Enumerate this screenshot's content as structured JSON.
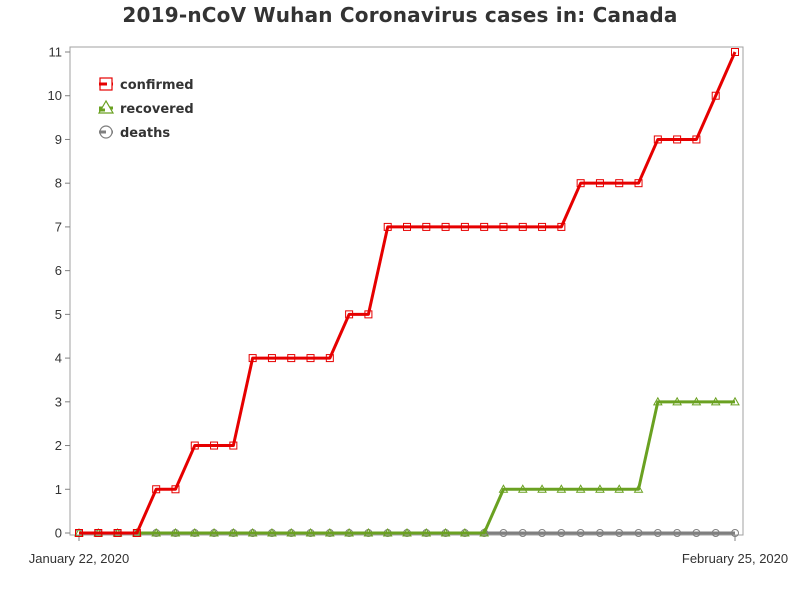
{
  "chart_data": {
    "type": "line",
    "title": "2019-nCoV Wuhan Coronavirus cases in: Canada",
    "x_label_first": "January 22, 2020",
    "x_label_last": "February 25, 2020",
    "xlabel": "",
    "ylabel": "",
    "x_start": "2020-01-22",
    "x_end": "2020-02-25",
    "ylim": [
      0,
      11
    ],
    "yticks": [
      "0",
      "1",
      "2",
      "3",
      "4",
      "5",
      "6",
      "7",
      "8",
      "9",
      "10",
      "11"
    ],
    "x": [
      "2020-01-22",
      "2020-01-23",
      "2020-01-24",
      "2020-01-25",
      "2020-01-26",
      "2020-01-27",
      "2020-01-28",
      "2020-01-29",
      "2020-01-30",
      "2020-01-31",
      "2020-02-01",
      "2020-02-02",
      "2020-02-03",
      "2020-02-04",
      "2020-02-05",
      "2020-02-06",
      "2020-02-07",
      "2020-02-08",
      "2020-02-09",
      "2020-02-10",
      "2020-02-11",
      "2020-02-12",
      "2020-02-13",
      "2020-02-14",
      "2020-02-15",
      "2020-02-16",
      "2020-02-17",
      "2020-02-18",
      "2020-02-19",
      "2020-02-20",
      "2020-02-21",
      "2020-02-22",
      "2020-02-23",
      "2020-02-24",
      "2020-02-25"
    ],
    "grid": false,
    "legend_position": "top-left",
    "series": [
      {
        "name": "confirmed",
        "color": "#e60000",
        "marker": "square",
        "values": [
          0,
          0,
          0,
          0,
          1,
          1,
          2,
          2,
          2,
          4,
          4,
          4,
          4,
          4,
          5,
          5,
          7,
          7,
          7,
          7,
          7,
          7,
          7,
          7,
          7,
          7,
          8,
          8,
          8,
          8,
          9,
          9,
          9,
          10,
          11
        ]
      },
      {
        "name": "recovered",
        "color": "#6aa121",
        "marker": "triangle",
        "values": [
          0,
          0,
          0,
          0,
          0,
          0,
          0,
          0,
          0,
          0,
          0,
          0,
          0,
          0,
          0,
          0,
          0,
          0,
          0,
          0,
          0,
          0,
          1,
          1,
          1,
          1,
          1,
          1,
          1,
          1,
          3,
          3,
          3,
          3,
          3
        ]
      },
      {
        "name": "deaths",
        "color": "#7f7f7f",
        "marker": "circle",
        "values": [
          0,
          0,
          0,
          0,
          0,
          0,
          0,
          0,
          0,
          0,
          0,
          0,
          0,
          0,
          0,
          0,
          0,
          0,
          0,
          0,
          0,
          0,
          0,
          0,
          0,
          0,
          0,
          0,
          0,
          0,
          0,
          0,
          0,
          0,
          0
        ]
      }
    ]
  }
}
